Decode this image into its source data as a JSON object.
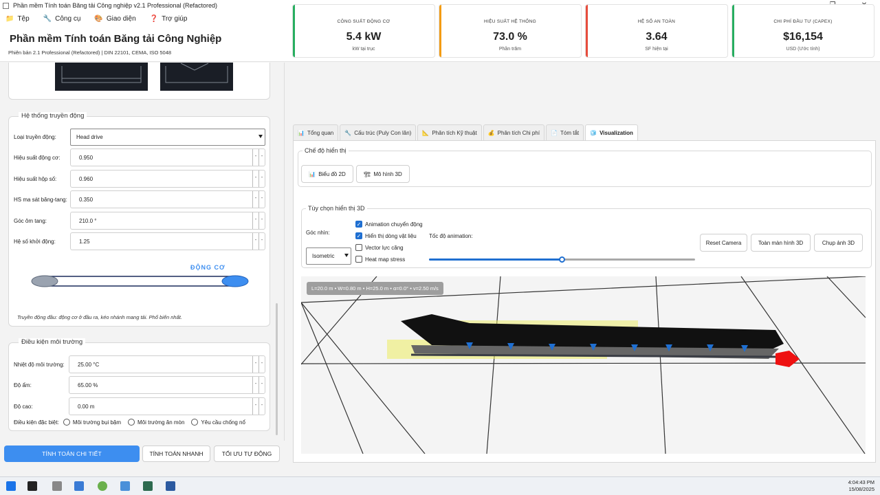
{
  "window": {
    "title": "Phần mềm Tính toán Băng tải Công nghiệp v2.1 Professional (Refactored)",
    "min": "–",
    "max": "❐",
    "close": "✕"
  },
  "menu": [
    {
      "label": "Tệp",
      "icon": "folder-icon",
      "glyph": "📁"
    },
    {
      "label": "Công cụ",
      "icon": "wrench-icon",
      "glyph": "🔧"
    },
    {
      "label": "Giao diện",
      "icon": "palette-icon",
      "glyph": "🎨"
    },
    {
      "label": "Trợ giúp",
      "icon": "help-icon",
      "glyph": "❓"
    }
  ],
  "header": {
    "title": "Phần mềm Tính toán Băng tải Công Nghiệp",
    "subtitle": "Phiên bản 2.1 Professional (Refactored) | DIN 22101, CEMA, ISO 5048"
  },
  "drive": {
    "group_title": "Hệ thống truyền động",
    "type_label": "Loại truyền động:",
    "type_value": "Head drive",
    "fields": [
      {
        "label": "Hiệu suất động cơ:",
        "value": "0.950"
      },
      {
        "label": "Hiệu suất hộp số:",
        "value": "0.960"
      },
      {
        "label": "HS ma sát băng-tang:",
        "value": "0.350"
      },
      {
        "label": "Góc ôm tang:",
        "value": "210.0 °"
      },
      {
        "label": "Hệ số khởi động:",
        "value": "1.25"
      }
    ],
    "motor_label": "ĐỘNG CƠ",
    "note": "Truyền động đầu: động cơ ở đầu ra, kéo nhánh mang tải. Phổ biến nhất."
  },
  "env": {
    "group_title": "Điều kiện môi trường",
    "fields": [
      {
        "label": "Nhiệt độ môi trường:",
        "value": "25.00 °C"
      },
      {
        "label": "Độ ẩm:",
        "value": "65.00 %"
      },
      {
        "label": "Độ cao:",
        "value": "0.00 m"
      }
    ],
    "special_label": "Điều kiện đặc biệt:",
    "special": [
      "Môi trường bụi bặm",
      "Môi trường ăn mòn",
      "Yêu cầu chống nổ"
    ]
  },
  "actions": {
    "detail": "TÍNH TOÁN CHI TIẾT",
    "quick": "TÍNH TOÁN NHANH",
    "optimize": "TỐI ƯU TỰ ĐỘNG"
  },
  "cards": [
    {
      "title": "CÔNG SUẤT ĐỘNG CƠ",
      "value": "5.4 kW",
      "unit": "kW tại trục",
      "color": "#27ae60"
    },
    {
      "title": "HIỆU SUẤT HỆ THỐNG",
      "value": "73.0 %",
      "unit": "Phần trăm",
      "color": "#f39c12"
    },
    {
      "title": "HỆ SỐ AN TOÀN",
      "value": "3.64",
      "unit": "SF hiện tại",
      "color": "#e74c3c"
    },
    {
      "title": "CHI PHÍ ĐẦU TƯ (CAPEX)",
      "value": "$16,154",
      "unit": "USD (Ước tính)",
      "color": "#27ae60"
    }
  ],
  "tabs": [
    {
      "label": "Tổng quan",
      "icon": "chart-icon",
      "glyph": "📊"
    },
    {
      "label": "Cấu trúc (Puly  Con lăn)",
      "icon": "wrench-icon",
      "glyph": "🔧"
    },
    {
      "label": "Phân tích Kỹ thuật",
      "icon": "triangle-ruler-icon",
      "glyph": "📐"
    },
    {
      "label": "Phân tích Chi phí",
      "icon": "money-bag-icon",
      "glyph": "💰"
    },
    {
      "label": "Tóm tắt",
      "icon": "document-icon",
      "glyph": "📄"
    },
    {
      "label": "Visualization",
      "icon": "cube-icon",
      "glyph": "🧊"
    }
  ],
  "viz": {
    "mode_title": "Chế độ hiển thị",
    "btn_2d": "Biểu đồ 2D",
    "btn_3d": "Mô hình 3D",
    "opt_title": "Tùy chọn hiển thị 3D",
    "view_label": "Góc nhìn:",
    "view_value": "Isometric",
    "checks": [
      {
        "label": "Animation chuyển động",
        "on": true
      },
      {
        "label": "Hiển thị dòng vật liệu",
        "on": true
      },
      {
        "label": "Vector lực căng",
        "on": false
      },
      {
        "label": "Heat map stress",
        "on": false
      }
    ],
    "speed_label": "Tốc độ animation:",
    "speed_fraction": 0.5,
    "reset": "Reset Camera",
    "fullscreen": "Toàn màn hình 3D",
    "snapshot": "Chụp ảnh 3D",
    "scene_info": "L=20.0 m • W=0.80 m • H=25.0 m • α=0.0° • v=2.50 m/s"
  },
  "tray": {
    "time": "4:04:43 PM",
    "date": "15/08/2025"
  }
}
